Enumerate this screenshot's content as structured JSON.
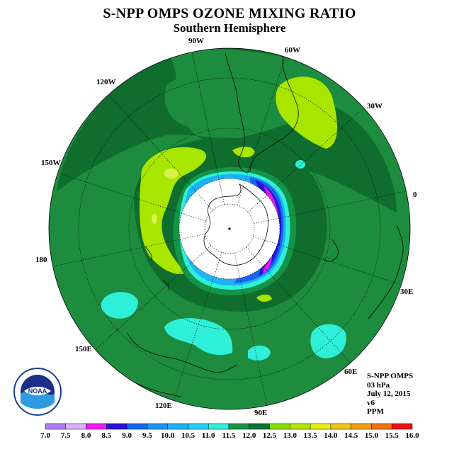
{
  "title": "S-NPP OMPS OZONE MIXING RATIO",
  "subtitle": "Southern Hemisphere",
  "lon_labels": {
    "w90": "90W",
    "w60": "60W",
    "w120": "120W",
    "w30": "30W",
    "w150": "150W",
    "e0": "0",
    "e180": "180",
    "e30": "30E",
    "e150": "150E",
    "e60": "60E",
    "e120": "120E",
    "e90": "90E"
  },
  "info": {
    "product": "S-NPP OMPS",
    "level": "03 hPa",
    "date": "July 12, 2015",
    "version": "v6",
    "units": "PPM"
  },
  "logo": {
    "text": "NOAA"
  },
  "colorbar": {
    "ticks": [
      "7.0",
      "7.5",
      "8.0",
      "8.5",
      "9.0",
      "9.5",
      "10.0",
      "10.5",
      "11.0",
      "11.5",
      "12.0",
      "12.5",
      "13.0",
      "13.5",
      "14.0",
      "14.5",
      "15.0",
      "15.5",
      "16.0"
    ],
    "colors": [
      "#b07cf0",
      "#d8b2f6",
      "#ee1af0",
      "#2a12dc",
      "#1466f0",
      "#1c92f0",
      "#1cb2f6",
      "#22cef6",
      "#2ef0d8",
      "#149446",
      "#0e7232",
      "#88dc00",
      "#b4e600",
      "#e6ee10",
      "#f2c418",
      "#f2a012",
      "#f07012",
      "#ee1010",
      "#8a5a32"
    ]
  },
  "colors": {
    "background_field": "#1d8a3c",
    "dark_band": "#0e6a2c",
    "light_green": "#a8e600",
    "cyan": "#2ef0d8",
    "polar_night": "#ffffff"
  }
}
